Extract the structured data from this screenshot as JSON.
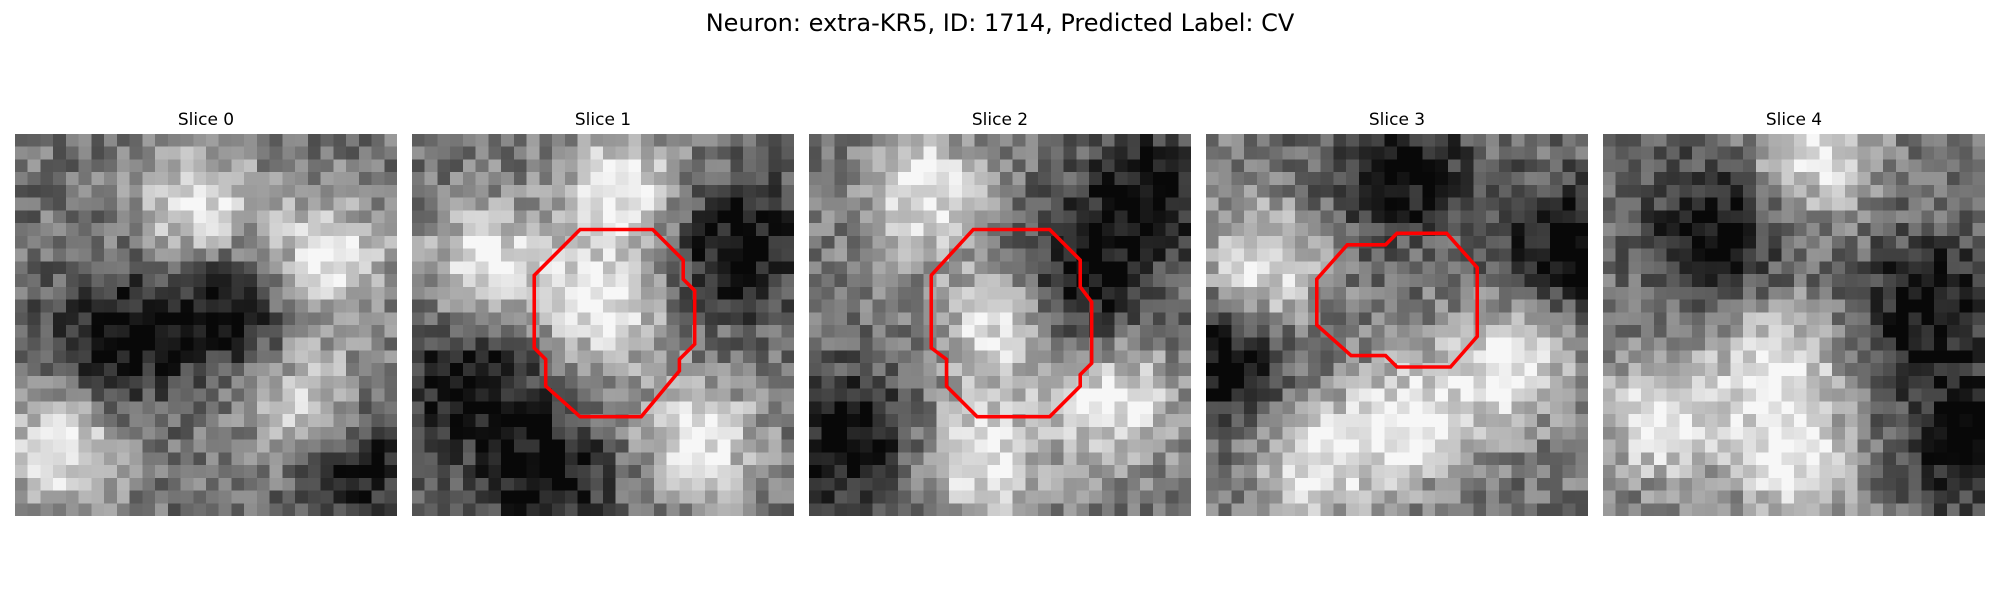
{
  "figure": {
    "title": "Neuron: extra-KR5, ID: 1714, Predicted Label: CV"
  },
  "colors": {
    "contour": "#ff0000",
    "background": "#ffffff"
  },
  "panels": [
    {
      "title": "Slice 0",
      "contour": null,
      "appearance": "grayscale texture with bright upper-middle region and dark diagonal band",
      "pattern": {
        "bright_centers": [
          [
            0.48,
            0.2
          ],
          [
            0.82,
            0.33
          ],
          [
            0.78,
            0.72
          ],
          [
            0.12,
            0.82
          ]
        ],
        "dark_centers": [
          [
            0.55,
            0.45
          ],
          [
            0.25,
            0.55
          ],
          [
            0.9,
            0.85
          ]
        ],
        "seed": 11
      }
    },
    {
      "title": "Slice 1",
      "contour": [
        [
          0.44,
          0.25
        ],
        [
          0.63,
          0.25
        ],
        [
          0.71,
          0.33
        ],
        [
          0.71,
          0.38
        ],
        [
          0.74,
          0.41
        ],
        [
          0.74,
          0.55
        ],
        [
          0.7,
          0.59
        ],
        [
          0.7,
          0.62
        ],
        [
          0.6,
          0.74
        ],
        [
          0.44,
          0.74
        ],
        [
          0.35,
          0.66
        ],
        [
          0.35,
          0.59
        ],
        [
          0.32,
          0.56
        ],
        [
          0.32,
          0.37
        ]
      ],
      "pattern": {
        "bright_centers": [
          [
            0.5,
            0.45
          ],
          [
            0.55,
            0.15
          ],
          [
            0.75,
            0.8
          ],
          [
            0.2,
            0.35
          ]
        ],
        "dark_centers": [
          [
            0.15,
            0.65
          ],
          [
            0.85,
            0.3
          ],
          [
            0.35,
            0.9
          ]
        ],
        "seed": 23
      }
    },
    {
      "title": "Slice 2",
      "contour": [
        [
          0.43,
          0.25
        ],
        [
          0.63,
          0.25
        ],
        [
          0.71,
          0.33
        ],
        [
          0.71,
          0.4
        ],
        [
          0.74,
          0.44
        ],
        [
          0.74,
          0.6
        ],
        [
          0.71,
          0.63
        ],
        [
          0.71,
          0.66
        ],
        [
          0.63,
          0.74
        ],
        [
          0.44,
          0.74
        ],
        [
          0.36,
          0.66
        ],
        [
          0.36,
          0.59
        ],
        [
          0.32,
          0.56
        ],
        [
          0.32,
          0.37
        ]
      ],
      "pattern": {
        "bright_centers": [
          [
            0.5,
            0.5
          ],
          [
            0.3,
            0.15
          ],
          [
            0.8,
            0.7
          ],
          [
            0.45,
            0.85
          ]
        ],
        "dark_centers": [
          [
            0.1,
            0.8
          ],
          [
            0.9,
            0.15
          ],
          [
            0.7,
            0.4
          ]
        ],
        "seed": 37
      }
    },
    {
      "title": "Slice 3",
      "contour": [
        [
          0.37,
          0.29
        ],
        [
          0.47,
          0.29
        ],
        [
          0.5,
          0.26
        ],
        [
          0.63,
          0.26
        ],
        [
          0.71,
          0.35
        ],
        [
          0.71,
          0.53
        ],
        [
          0.64,
          0.61
        ],
        [
          0.5,
          0.61
        ],
        [
          0.47,
          0.58
        ],
        [
          0.38,
          0.58
        ],
        [
          0.29,
          0.5
        ],
        [
          0.29,
          0.38
        ]
      ],
      "pattern": {
        "bright_centers": [
          [
            0.15,
            0.35
          ],
          [
            0.55,
            0.75
          ],
          [
            0.8,
            0.6
          ],
          [
            0.3,
            0.85
          ]
        ],
        "dark_centers": [
          [
            0.5,
            0.1
          ],
          [
            0.05,
            0.6
          ],
          [
            0.95,
            0.3
          ]
        ],
        "seed": 41
      }
    },
    {
      "title": "Slice 4",
      "contour": null,
      "appearance": "grayscale texture with dark arc across top and bright lower area",
      "pattern": {
        "bright_centers": [
          [
            0.45,
            0.6
          ],
          [
            0.5,
            0.85
          ],
          [
            0.55,
            0.05
          ],
          [
            0.15,
            0.75
          ]
        ],
        "dark_centers": [
          [
            0.3,
            0.25
          ],
          [
            0.85,
            0.45
          ],
          [
            0.95,
            0.8
          ]
        ],
        "seed": 53
      }
    }
  ]
}
